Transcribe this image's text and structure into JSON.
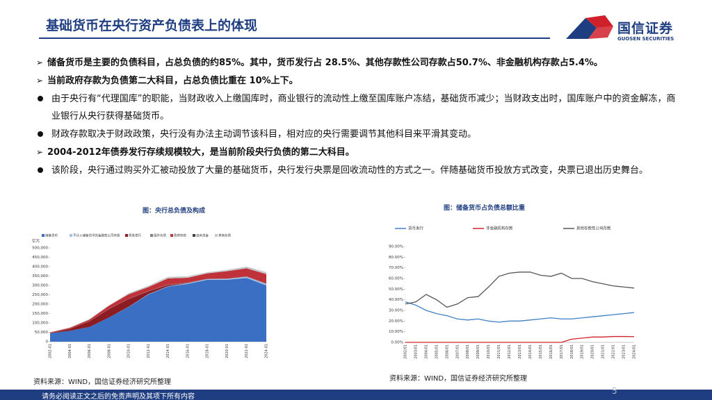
{
  "header": {
    "title": "基础货币在央行资产负债表上的体现",
    "logo_name": "国信证券",
    "logo_en": "GUOSEN SECURITIES"
  },
  "bullets": [
    {
      "kind": "arrow",
      "text": "储备货币是主要的负债科目，占总负债的约85%。其中，货币发行占 28.5%、其他存款性公司存款占50.7%、非金融机构存款占5.4%。"
    },
    {
      "kind": "arrow",
      "text": "当前政府存款为负债第二大科目，占总负债比重在 10%上下。"
    },
    {
      "kind": "dot",
      "text": "由于央行有“代理国库”的职能，当财政收入上缴国库时，商业银行的流动性上缴至国库账户冻结，基础货币减少；当财政支出时，国库账户中的资金解冻，商业银行从央行获得基础货币。"
    },
    {
      "kind": "dot",
      "text": "财政存款取决于财政政策，央行没有办法主动调节该科目，相对应的央行需要调节其他科目来平滑其变动。"
    },
    {
      "kind": "arrow",
      "text": "2004-2012年债券发行存续规模较大，是当前阶段央行负债的第二大科目。"
    },
    {
      "kind": "dot",
      "text": "该阶段，央行通过购买外汇被动投放了大量的基础货币，央行发行央票是回收流动性的方式之一。伴随基础货币投放方式改变，央票已退出历史舞台。"
    }
  ],
  "chart_data": [
    {
      "type": "stacked_area",
      "title": "图：央行总负债及构成",
      "y_label": "亿元",
      "categories": [
        "2002-01",
        "2004-01",
        "2006-01",
        "2008-01",
        "2010-01",
        "2012-01",
        "2014-01",
        "2016-01",
        "2018-01",
        "2020-01",
        "2022-01",
        "2024-01"
      ],
      "series": [
        {
          "name": "储备货币",
          "color": "#3b6fc3",
          "values": [
            45000,
            58000,
            78000,
            129000,
            185000,
            252000,
            294000,
            308000,
            330000,
            330000,
            340000,
            300000
          ]
        },
        {
          "name": "不计入储备货币的金融性公司存款",
          "color": "#9fc3ea",
          "values": [
            0,
            0,
            0,
            0,
            1000,
            1500,
            2000,
            3000,
            4000,
            5000,
            6000,
            8000
          ]
        },
        {
          "name": "债券发行",
          "color": "#8b1c24",
          "values": [
            1000,
            10000,
            30000,
            45000,
            42000,
            15000,
            7000,
            600,
            200,
            900,
            950,
            1000
          ]
        },
        {
          "name": "国外负债",
          "color": "#7f7f7f",
          "values": [
            500,
            500,
            1000,
            1000,
            700,
            1500,
            1500,
            3000,
            1000,
            900,
            1100,
            1500
          ]
        },
        {
          "name": "政府存款",
          "color": "#c0323a",
          "values": [
            3000,
            5000,
            8000,
            17000,
            24000,
            21000,
            33000,
            26000,
            29000,
            39000,
            43000,
            50000
          ]
        },
        {
          "name": "自有资金",
          "color": "#404040",
          "values": [
            200,
            200,
            200,
            200,
            200,
            200,
            200,
            200,
            200,
            200,
            200,
            200
          ]
        },
        {
          "name": "其他负债",
          "color": "#c8c8c8",
          "values": [
            1000,
            2000,
            4000,
            2000,
            6000,
            7000,
            8000,
            8000,
            6000,
            7000,
            9000,
            10000
          ]
        }
      ],
      "ylim": [
        0,
        500000
      ],
      "yticks": [
        0,
        {
          "value": 50000,
          "label": "50,000"
        },
        {
          "value": 100000,
          "label": "100,000"
        },
        {
          "value": 150000,
          "label": "150,000"
        },
        {
          "value": 200000,
          "label": "200,000"
        },
        {
          "value": 250000,
          "label": "250,000"
        },
        {
          "value": 300000,
          "label": "300,000"
        },
        {
          "value": 350000,
          "label": "350,000"
        },
        {
          "value": 400000,
          "label": "400,000"
        },
        {
          "value": 450000,
          "label": "450,000"
        },
        {
          "value": 500000,
          "label": "500,000"
        }
      ],
      "grid": false
    },
    {
      "type": "line",
      "title": "图：储备货币占负债总额比重",
      "categories": [
        "2002/01",
        "2003/01",
        "2004/01",
        "2005/01",
        "2006/01",
        "2007/01",
        "2008/01",
        "2009/01",
        "2010/01",
        "2011/01",
        "2012/01",
        "2013/01",
        "2014/01",
        "2015/01",
        "2016/01",
        "2017/01",
        "2018/01",
        "2019/01",
        "2020/01",
        "2021/01",
        "2022/01",
        "2023/01",
        "2024/01"
      ],
      "series": [
        {
          "name": "货币发行",
          "color": "#3f7fc4",
          "values": [
            38,
            35,
            30,
            27,
            25,
            22,
            21,
            22,
            20,
            19,
            20,
            20,
            21,
            22,
            23,
            22,
            22,
            23,
            24,
            25,
            26,
            27,
            28
          ]
        },
        {
          "name": "非金融机构存款",
          "color": "#d0202a",
          "values": [
            0,
            0,
            0,
            0,
            0,
            0,
            0,
            0,
            0,
            0,
            0,
            0,
            0,
            0,
            0,
            0,
            3,
            4,
            5,
            5,
            5.5,
            5.5,
            5.4
          ]
        },
        {
          "name": "其他存款性公司存款",
          "color": "#555555",
          "values": [
            36,
            38,
            45,
            40,
            33,
            36,
            42,
            43,
            52,
            62,
            65,
            66,
            66,
            63,
            62,
            65,
            60,
            60,
            57,
            55,
            53,
            52,
            51
          ]
        }
      ],
      "ylim": [
        0,
        90
      ],
      "yticks": [
        {
          "value": 0,
          "label": "0.00%"
        },
        {
          "value": 10,
          "label": "10.00%"
        },
        {
          "value": 20,
          "label": "20.00%"
        },
        {
          "value": 30,
          "label": "30.00%"
        },
        {
          "value": 40,
          "label": "40.00%"
        },
        {
          "value": 50,
          "label": "50.00%"
        },
        {
          "value": 60,
          "label": "60.00%"
        },
        {
          "value": 70,
          "label": "70.00%"
        },
        {
          "value": 80,
          "label": "80.00%"
        },
        {
          "value": 90,
          "label": "90.00%"
        }
      ],
      "grid": false
    }
  ],
  "sources": [
    "资料来源：WIND，国信证券经济研究所整理",
    "资料来源：WIND，国信证券经济研究所整理"
  ],
  "footer": {
    "disclaimer": "请务必阅读正文之后的免责声明及其项下所有内容",
    "page_number": "5"
  }
}
